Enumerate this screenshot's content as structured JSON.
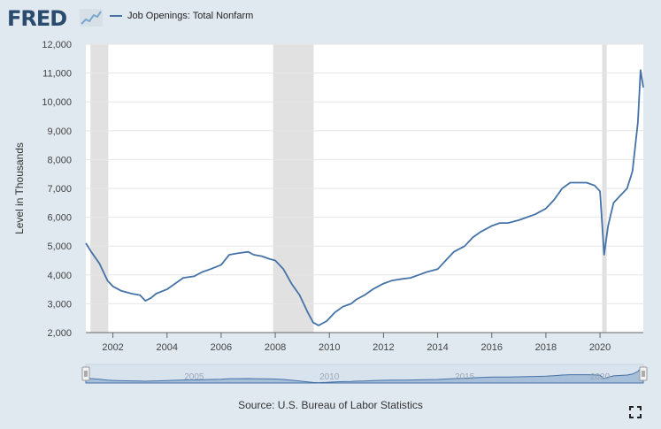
{
  "brand": {
    "logo_text": "FRED",
    "logo_icon": "trend-line-icon"
  },
  "legend": {
    "series_label": "Job Openings: Total Nonfarm",
    "line_color": "#4572a7"
  },
  "source": "Source: U.S. Bureau of Labor Statistics",
  "controls": {
    "fullscreen_icon": "fullscreen-icon"
  },
  "chart_data": {
    "type": "line",
    "ylabel": "Level in Thousands",
    "ylim": [
      2000,
      12000
    ],
    "yticks": [
      "2,000",
      "3,000",
      "4,000",
      "5,000",
      "6,000",
      "7,000",
      "8,000",
      "9,000",
      "10,000",
      "11,000",
      "12,000"
    ],
    "xlim": [
      2001.0,
      2021.6
    ],
    "xticks": [
      "2002",
      "2004",
      "2006",
      "2008",
      "2010",
      "2012",
      "2014",
      "2016",
      "2018",
      "2020"
    ],
    "grid": "horizontal",
    "recessions": [
      [
        2001.17,
        2001.83
      ],
      [
        2007.92,
        2009.42
      ],
      [
        2020.08,
        2020.25
      ]
    ],
    "navigator_labels": [
      "2005",
      "2010",
      "2015",
      "2020"
    ],
    "series": [
      {
        "name": "Job Openings: Total Nonfarm",
        "color": "#4572a7",
        "x": [
          2001.0,
          2001.2,
          2001.5,
          2001.8,
          2002.0,
          2002.3,
          2002.5,
          2002.7,
          2003.0,
          2003.2,
          2003.4,
          2003.6,
          2004.0,
          2004.3,
          2004.6,
          2005.0,
          2005.3,
          2005.6,
          2006.0,
          2006.3,
          2006.6,
          2007.0,
          2007.2,
          2007.5,
          2007.8,
          2008.0,
          2008.3,
          2008.6,
          2008.9,
          2009.2,
          2009.4,
          2009.6,
          2009.9,
          2010.2,
          2010.5,
          2010.8,
          2011.0,
          2011.3,
          2011.6,
          2012.0,
          2012.3,
          2012.6,
          2013.0,
          2013.3,
          2013.6,
          2014.0,
          2014.3,
          2014.6,
          2015.0,
          2015.3,
          2015.6,
          2016.0,
          2016.3,
          2016.6,
          2017.0,
          2017.3,
          2017.6,
          2018.0,
          2018.3,
          2018.6,
          2018.9,
          2019.2,
          2019.5,
          2019.8,
          2020.0,
          2020.15,
          2020.3,
          2020.5,
          2020.7,
          2021.0,
          2021.2,
          2021.4,
          2021.5,
          2021.6
        ],
        "values": [
          5100,
          4800,
          4400,
          3800,
          3600,
          3450,
          3400,
          3350,
          3300,
          3100,
          3200,
          3350,
          3500,
          3700,
          3900,
          3950,
          4100,
          4200,
          4350,
          4700,
          4750,
          4800,
          4700,
          4650,
          4550,
          4500,
          4200,
          3700,
          3300,
          2700,
          2350,
          2250,
          2400,
          2700,
          2900,
          3000,
          3150,
          3300,
          3500,
          3700,
          3800,
          3850,
          3900,
          4000,
          4100,
          4200,
          4500,
          4800,
          5000,
          5300,
          5500,
          5700,
          5800,
          5800,
          5900,
          6000,
          6100,
          6300,
          6600,
          7000,
          7200,
          7200,
          7200,
          7100,
          6900,
          4700,
          5700,
          6500,
          6700,
          7000,
          7600,
          9300,
          11100,
          10500
        ]
      }
    ]
  }
}
